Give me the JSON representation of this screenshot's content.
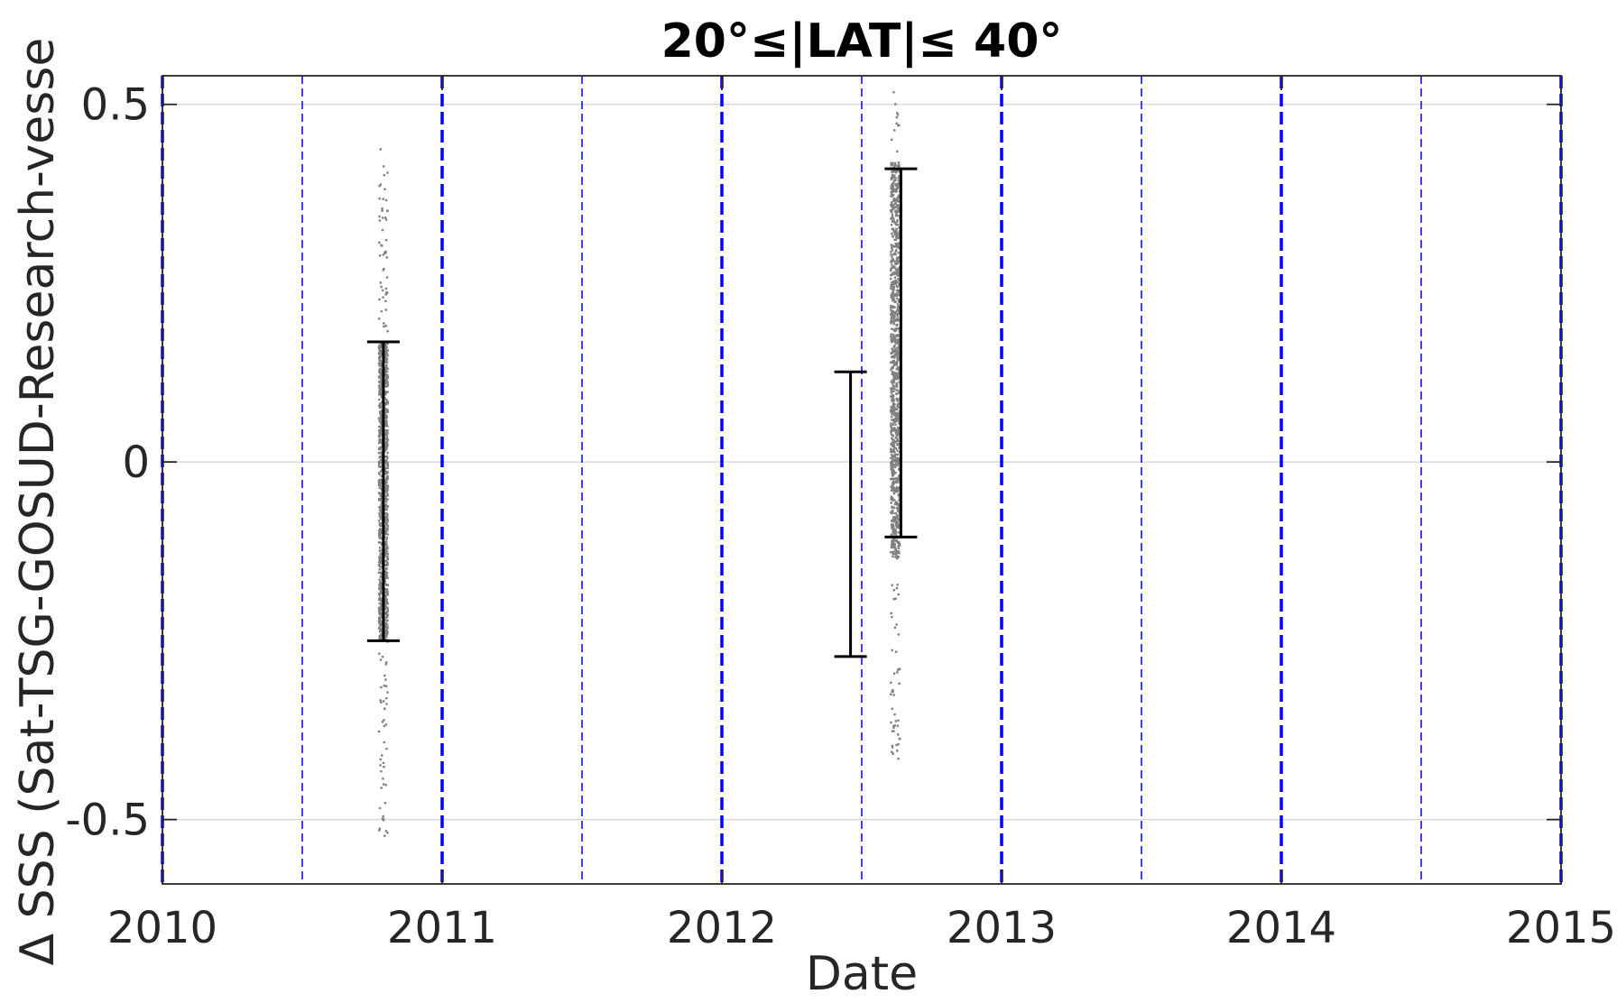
{
  "chart_data": {
    "type": "scatter",
    "title": "20°≤|LAT|≤ 40°",
    "xlabel": "Date",
    "ylabel": "Δ SSS (Sat-TSG-GOSUD-Research-vesse",
    "xlim": [
      2010,
      2015
    ],
    "ylim": [
      -0.59,
      0.54
    ],
    "x_ticks": [
      "2010",
      "2011",
      "2012",
      "2013",
      "2014",
      "2015"
    ],
    "y_ticks": [
      "0.5",
      "0",
      "-0.5"
    ],
    "y_tick_values": [
      0.5,
      0,
      -0.5
    ],
    "grid": "horizontal",
    "vertical_reference_lines": {
      "color": "#0000ff",
      "years": [
        2010,
        2011,
        2012,
        2013,
        2014,
        2015
      ],
      "half_years": [
        2010.5,
        2011.5,
        2012.5,
        2013.5,
        2014.5
      ]
    },
    "scatter_series": [
      {
        "x": 2010.79,
        "y_min": -0.53,
        "y_max": 0.44,
        "dense_min": -0.25,
        "dense_max": 0.17,
        "color": "#808080"
      },
      {
        "x": 2012.62,
        "y_min": -0.42,
        "y_max": 0.53,
        "dense_min": -0.13,
        "dense_max": 0.42,
        "color": "#808080"
      }
    ],
    "error_bars": [
      {
        "x": 2010.79,
        "low": -0.25,
        "high": 0.168
      },
      {
        "x": 2012.46,
        "low": -0.272,
        "high": 0.126
      },
      {
        "x": 2012.64,
        "low": -0.105,
        "high": 0.41
      }
    ]
  }
}
